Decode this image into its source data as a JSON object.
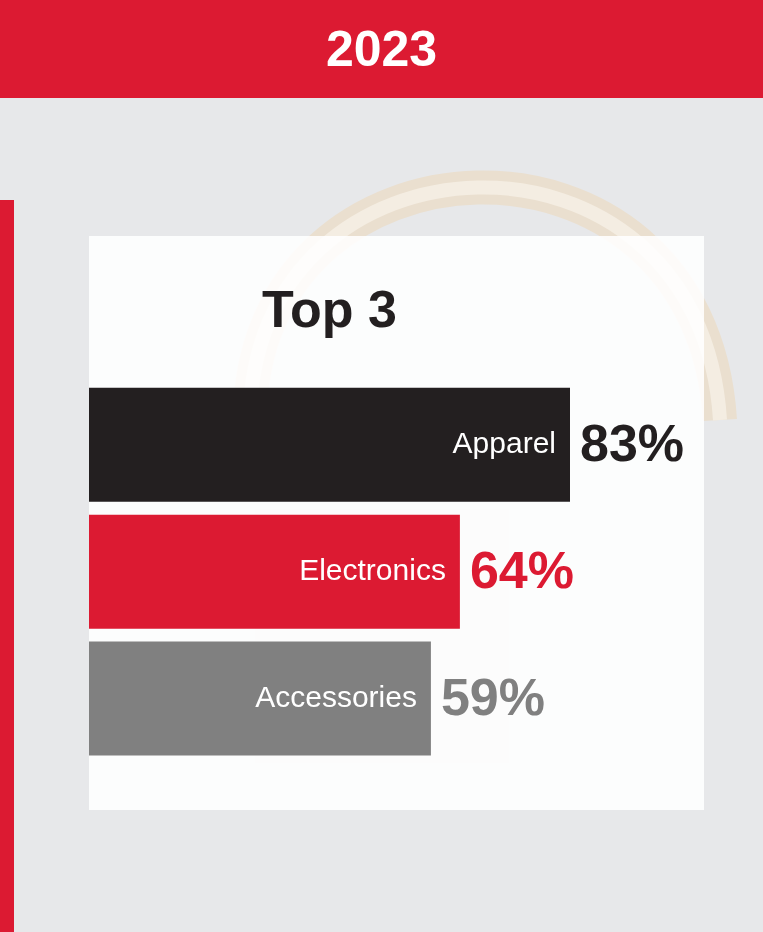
{
  "header": {
    "title": "2023"
  },
  "chart_data": {
    "type": "bar",
    "title": "Top 3",
    "orientation": "horizontal",
    "categories": [
      "Apparel",
      "Electronics",
      "Accessories"
    ],
    "values": [
      83,
      64,
      59
    ],
    "value_labels": [
      "83%",
      "64%",
      "59%"
    ],
    "colors": [
      "#231f20",
      "#dc1a32",
      "#808080"
    ],
    "data_labels": true,
    "tick_labels": false,
    "grid": false
  }
}
